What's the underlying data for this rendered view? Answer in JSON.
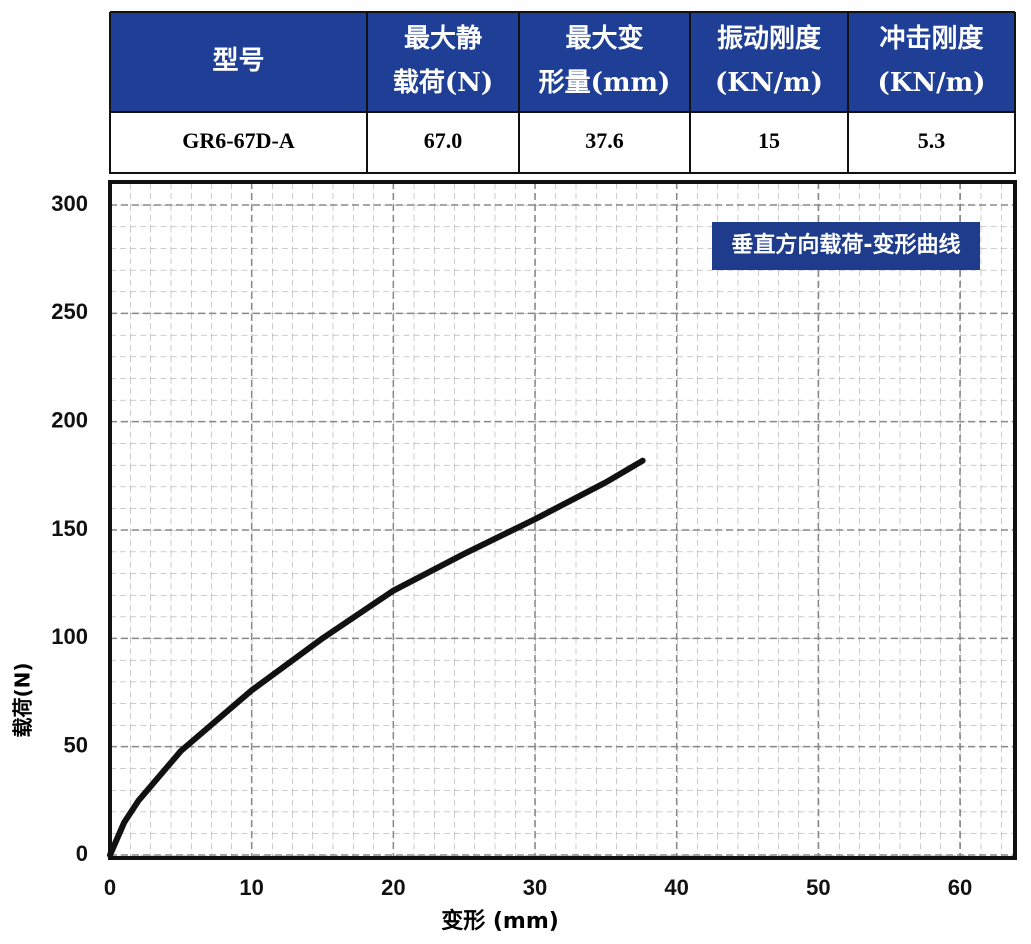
{
  "table": {
    "header": [
      [
        "型号"
      ],
      [
        "最大静",
        "载荷(N)"
      ],
      [
        "最大变",
        "形量(mm)"
      ],
      [
        "振动刚度",
        "(KN/m)"
      ],
      [
        "冲击刚度",
        "(KN/m)"
      ]
    ],
    "rows": [
      [
        "GR6-67D-A",
        "67.0",
        "37.6",
        "15",
        "5.3"
      ]
    ]
  },
  "chart_data": {
    "type": "line",
    "title": "垂直方向载荷-变形曲线",
    "x_label": "变形 (mm)",
    "y_label": "载荷(N)",
    "x": [
      0,
      1,
      2,
      5,
      10,
      15,
      20,
      25,
      30,
      35,
      37.6
    ],
    "series": [
      {
        "color": "#111111",
        "values": [
          0,
          15,
          25,
          48,
          76,
          100,
          122,
          139,
          155,
          172,
          182
        ]
      }
    ],
    "xlim": [
      0,
      64
    ],
    "ylim": [
      0,
      310
    ],
    "xticks": [
      0,
      10,
      20,
      30,
      40,
      50,
      60
    ],
    "yticks": [
      0,
      50,
      100,
      150,
      200,
      250,
      300
    ],
    "grid": true
  }
}
